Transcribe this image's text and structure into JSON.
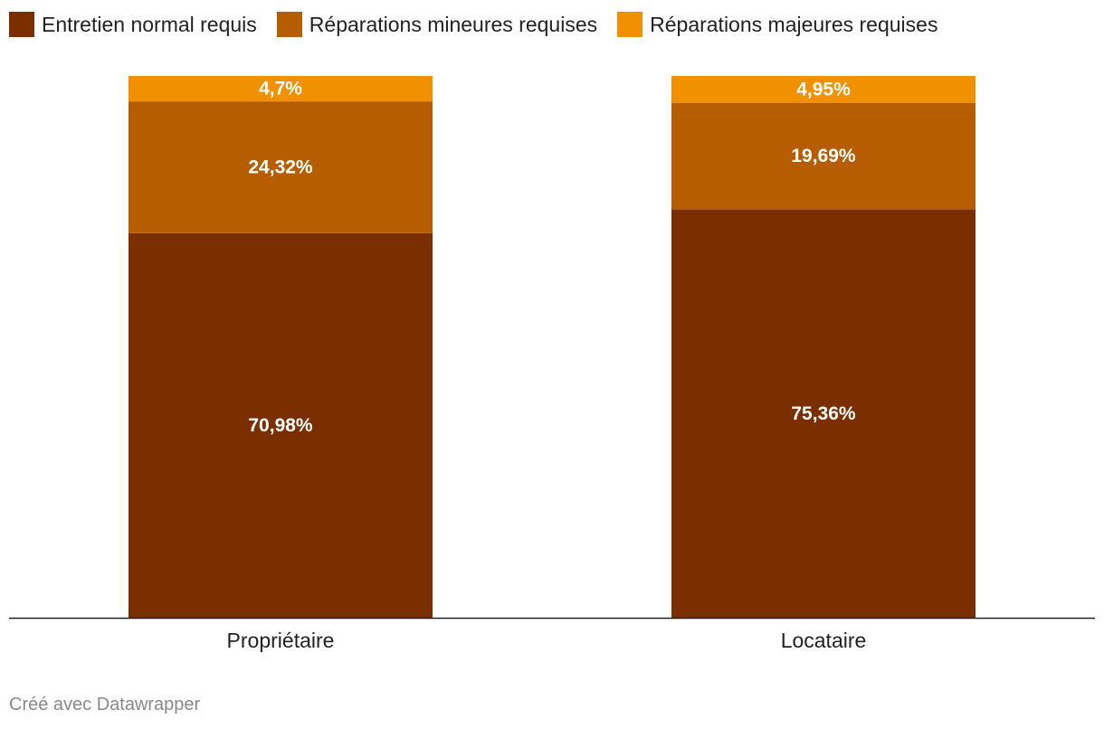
{
  "chart_data": {
    "type": "bar",
    "stacked": true,
    "categories": [
      "Propriétaire",
      "Locataire"
    ],
    "series": [
      {
        "name": "Entretien normal requis",
        "values": [
          70.98,
          75.36
        ],
        "labels": [
          "70,98%",
          "75,36%"
        ],
        "color": "#7b2e00"
      },
      {
        "name": "Réparations mineures requises",
        "values": [
          24.32,
          19.69
        ],
        "labels": [
          "24,32%",
          "19,69%"
        ],
        "color": "#b55d00"
      },
      {
        "name": "Réparations majeures requises",
        "values": [
          4.7,
          4.95
        ],
        "labels": [
          "4,7%",
          "4,95%"
        ],
        "color": "#f19000"
      }
    ],
    "ylim": [
      0,
      100
    ],
    "legend": "top-left",
    "grid": false
  },
  "footer": {
    "credit": "Créé avec Datawrapper"
  }
}
